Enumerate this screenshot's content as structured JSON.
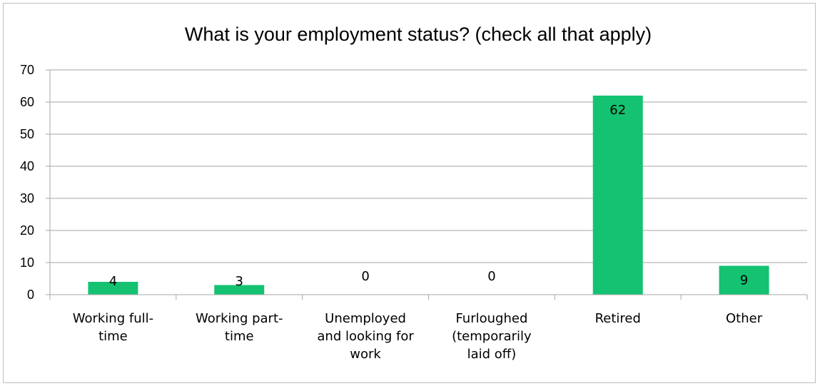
{
  "chart_data": {
    "type": "bar",
    "title": "What is your employment status? (check all that apply)",
    "xlabel": "",
    "ylabel": "",
    "ylim": [
      0,
      70
    ],
    "yticks": [
      0,
      10,
      20,
      30,
      40,
      50,
      60,
      70
    ],
    "grid": true,
    "legend": "none",
    "categories": [
      [
        "Working full-",
        "time"
      ],
      [
        "Working part-",
        "time"
      ],
      [
        "Unemployed",
        "and looking for",
        "work"
      ],
      [
        "Furloughed",
        "(temporarily",
        "laid off)"
      ],
      [
        "Retired"
      ],
      [
        "Other"
      ]
    ],
    "values": [
      4,
      3,
      0,
      0,
      62,
      9
    ],
    "bar_color": "#14C272",
    "grid_color": "#a6a6a6"
  }
}
